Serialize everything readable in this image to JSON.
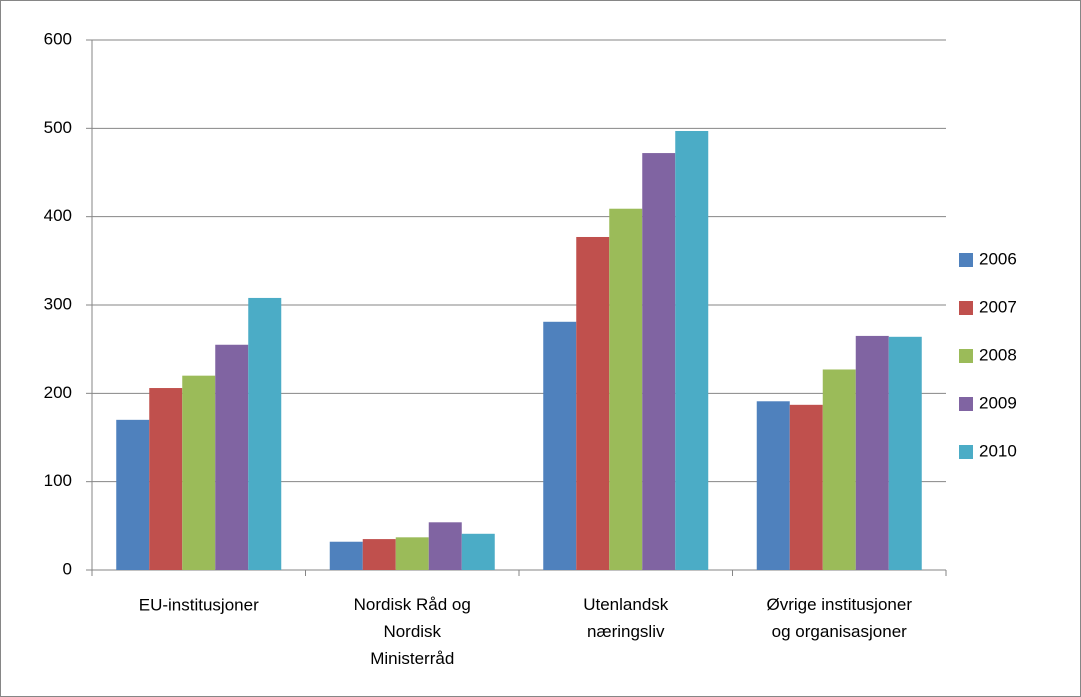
{
  "chart_data": {
    "type": "bar",
    "categories": [
      "EU-institusjoner",
      "Nordisk Råd og\nNordisk\nMinisterråd",
      "Utenlandsk\nnæringsliv",
      "Øvrige institusjoner\nog organisasjoner"
    ],
    "series": [
      {
        "name": "2006",
        "color": "#4f81bd",
        "values": [
          170,
          32,
          281,
          191
        ]
      },
      {
        "name": "2007",
        "color": "#c0504d",
        "values": [
          206,
          35,
          377,
          187
        ]
      },
      {
        "name": "2008",
        "color": "#9bbb59",
        "values": [
          220,
          37,
          409,
          227
        ]
      },
      {
        "name": "2009",
        "color": "#8064a2",
        "values": [
          255,
          54,
          472,
          265
        ]
      },
      {
        "name": "2010",
        "color": "#4bacc6",
        "values": [
          308,
          41,
          497,
          264
        ]
      }
    ],
    "ylim": [
      0,
      600
    ],
    "yticks": [
      0,
      100,
      200,
      300,
      400,
      500,
      600
    ],
    "grid": true,
    "legend": "right"
  }
}
